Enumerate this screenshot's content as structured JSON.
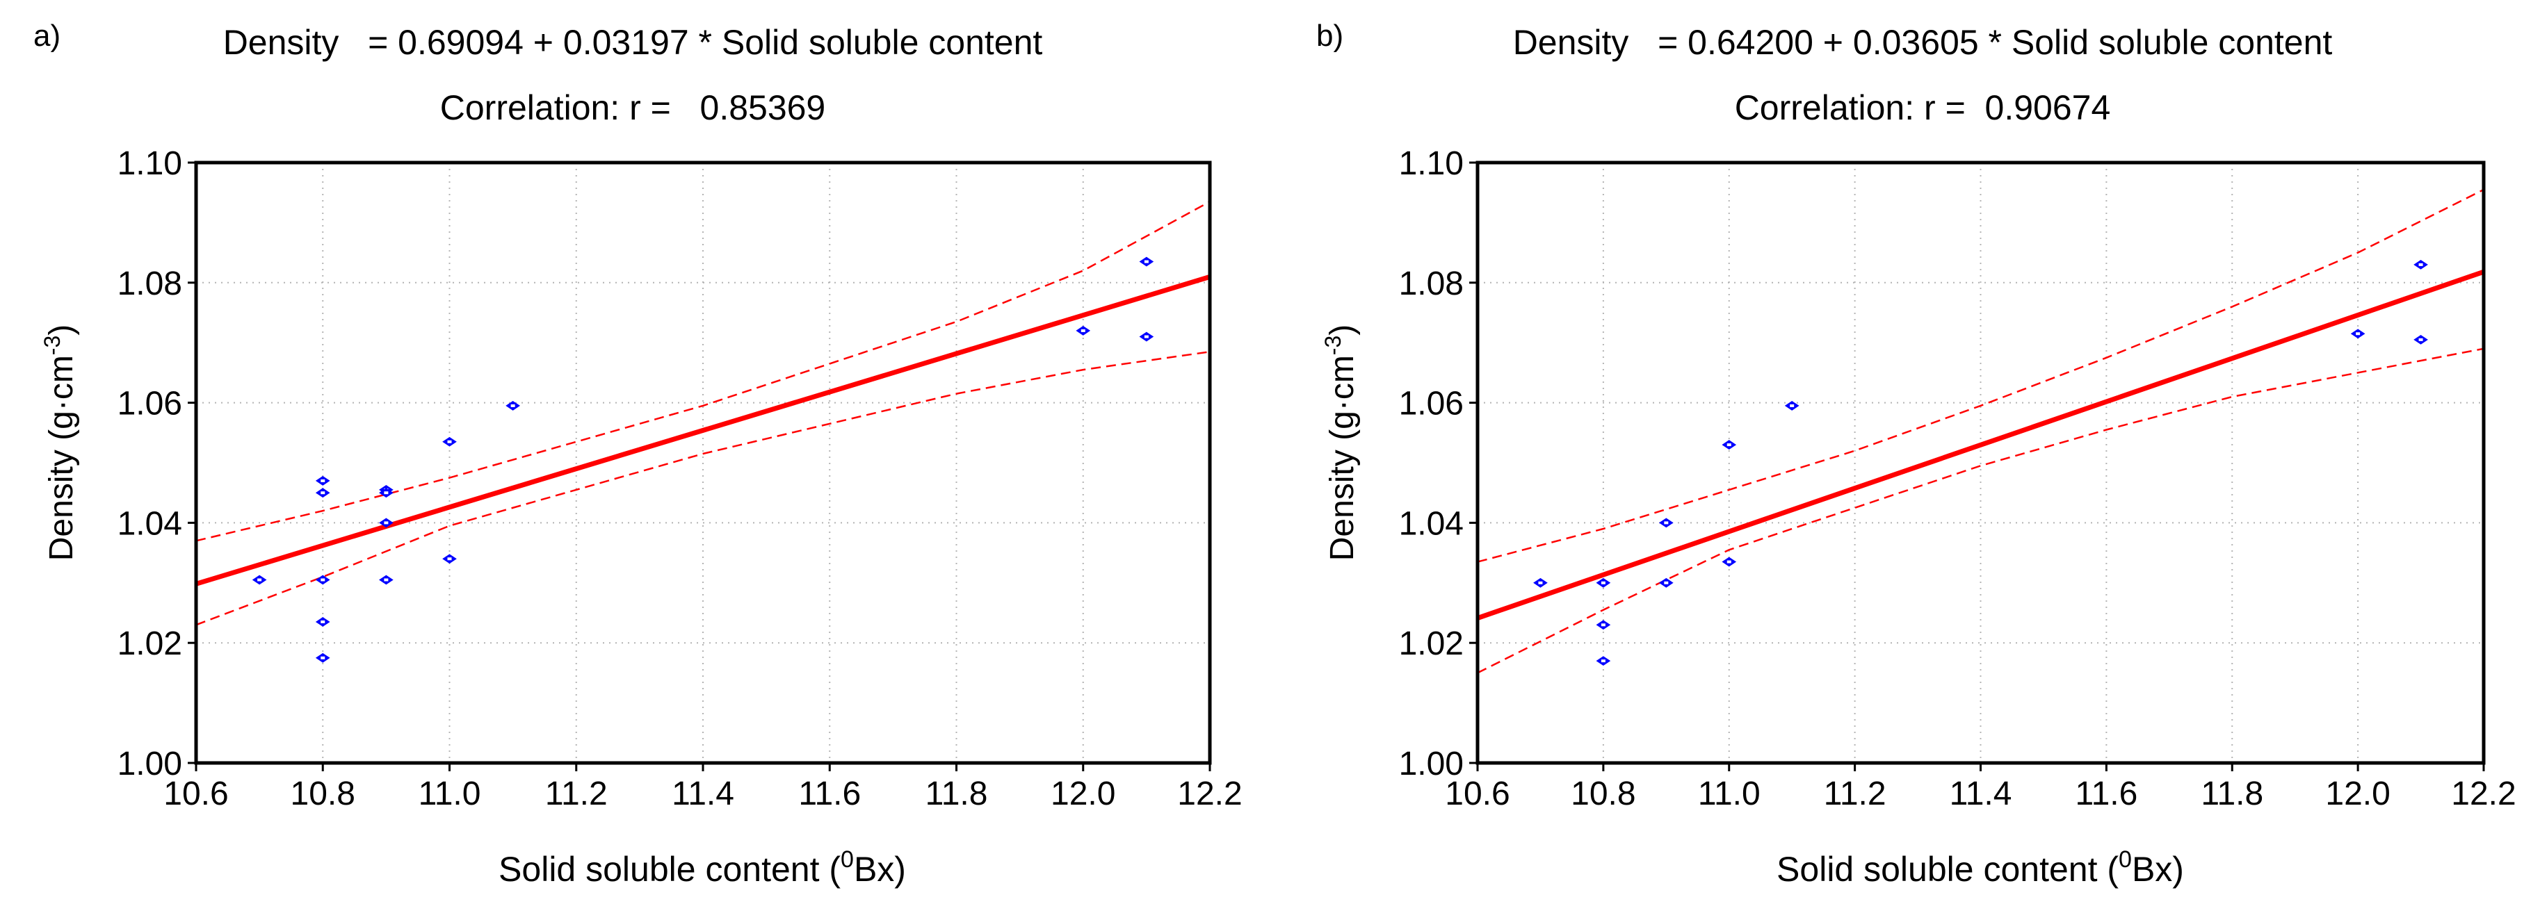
{
  "colors": {
    "regression": "#ff0000",
    "confidence": "#ff0000",
    "points": "#0000ff",
    "grid": "#b4b4b4",
    "axis": "#000000"
  },
  "chart_data": [
    {
      "type": "scatter",
      "panel_label": "a)",
      "equation": "Density   = 0.69094 + 0.03197 * Solid soluble content",
      "correlation": "Correlation: r =   0.85369",
      "ylabel_main": "Density (g·cm",
      "ylabel_sup": "-3",
      "ylabel_end": ")",
      "xlabel_main": "Solid soluble content (",
      "xlabel_sup": "0",
      "xlabel_end": "Bx)",
      "xlim": [
        10.6,
        12.2
      ],
      "ylim": [
        1.0,
        1.1
      ],
      "grid": true,
      "xticks": [
        10.6,
        10.8,
        11.0,
        11.2,
        11.4,
        11.6,
        11.8,
        12.0,
        12.2
      ],
      "xtick_labels": [
        "10.6",
        "10.8",
        "11.0",
        "11.2",
        "11.4",
        "11.6",
        "11.8",
        "12.0",
        "12.2"
      ],
      "yticks": [
        1.0,
        1.02,
        1.04,
        1.06,
        1.08,
        1.1
      ],
      "ytick_labels": [
        "1.00",
        "1.02",
        "1.04",
        "1.06",
        "1.08",
        "1.10"
      ],
      "intercept": 0.69094,
      "slope": 0.03197,
      "ci_upper": [
        [
          10.6,
          1.037
        ],
        [
          10.8,
          1.042
        ],
        [
          11.0,
          1.0475
        ],
        [
          11.2,
          1.0535
        ],
        [
          11.4,
          1.0595
        ],
        [
          11.6,
          1.0665
        ],
        [
          11.8,
          1.0735
        ],
        [
          12.0,
          1.082
        ],
        [
          12.2,
          1.0935
        ]
      ],
      "ci_lower": [
        [
          10.6,
          1.023
        ],
        [
          10.8,
          1.031
        ],
        [
          11.0,
          1.0395
        ],
        [
          11.2,
          1.0455
        ],
        [
          11.4,
          1.0515
        ],
        [
          11.6,
          1.0565
        ],
        [
          11.8,
          1.0615
        ],
        [
          12.0,
          1.0655
        ],
        [
          12.2,
          1.0685
        ]
      ],
      "points": [
        {
          "x": 10.7,
          "y": 1.0305
        },
        {
          "x": 10.8,
          "y": 1.047
        },
        {
          "x": 10.8,
          "y": 1.045
        },
        {
          "x": 10.8,
          "y": 1.0305
        },
        {
          "x": 10.8,
          "y": 1.0235
        },
        {
          "x": 10.8,
          "y": 1.0175
        },
        {
          "x": 10.9,
          "y": 1.0455
        },
        {
          "x": 10.9,
          "y": 1.045
        },
        {
          "x": 10.9,
          "y": 1.04
        },
        {
          "x": 10.9,
          "y": 1.0305
        },
        {
          "x": 11.0,
          "y": 1.0535
        },
        {
          "x": 11.0,
          "y": 1.034
        },
        {
          "x": 11.1,
          "y": 1.0595
        },
        {
          "x": 12.0,
          "y": 1.072
        },
        {
          "x": 12.1,
          "y": 1.0835
        },
        {
          "x": 12.1,
          "y": 1.071
        }
      ]
    },
    {
      "type": "scatter",
      "panel_label": "b)",
      "equation": "Density   = 0.64200 + 0.03605 * Solid soluble content",
      "correlation": "Correlation: r =  0.90674",
      "ylabel_main": "Density (g·cm",
      "ylabel_sup": "-3",
      "ylabel_end": ")",
      "xlabel_main": "Solid soluble content (",
      "xlabel_sup": "0",
      "xlabel_end": "Bx)",
      "xlim": [
        10.6,
        12.2
      ],
      "ylim": [
        1.0,
        1.1
      ],
      "grid": true,
      "xticks": [
        10.6,
        10.8,
        11.0,
        11.2,
        11.4,
        11.6,
        11.8,
        12.0,
        12.2
      ],
      "xtick_labels": [
        "10.6",
        "10.8",
        "11.0",
        "11.2",
        "11.4",
        "11.6",
        "11.8",
        "12.0",
        "12.2"
      ],
      "yticks": [
        1.0,
        1.02,
        1.04,
        1.06,
        1.08,
        1.1
      ],
      "ytick_labels": [
        "1.00",
        "1.02",
        "1.04",
        "1.06",
        "1.08",
        "1.10"
      ],
      "intercept": 0.642,
      "slope": 0.03605,
      "ci_upper": [
        [
          10.6,
          1.0335
        ],
        [
          10.8,
          1.039
        ],
        [
          11.0,
          1.0455
        ],
        [
          11.2,
          1.052
        ],
        [
          11.4,
          1.0595
        ],
        [
          11.6,
          1.0675
        ],
        [
          11.8,
          1.076
        ],
        [
          12.0,
          1.085
        ],
        [
          12.2,
          1.0955
        ]
      ],
      "ci_lower": [
        [
          10.6,
          1.015
        ],
        [
          10.8,
          1.0255
        ],
        [
          11.0,
          1.0355
        ],
        [
          11.2,
          1.0425
        ],
        [
          11.4,
          1.0495
        ],
        [
          11.6,
          1.0555
        ],
        [
          11.8,
          1.061
        ],
        [
          12.0,
          1.065
        ],
        [
          12.2,
          1.069
        ]
      ],
      "points": [
        {
          "x": 10.7,
          "y": 1.03
        },
        {
          "x": 10.8,
          "y": 1.03
        },
        {
          "x": 10.8,
          "y": 1.023
        },
        {
          "x": 10.8,
          "y": 1.017
        },
        {
          "x": 10.9,
          "y": 1.04
        },
        {
          "x": 10.9,
          "y": 1.03
        },
        {
          "x": 11.0,
          "y": 1.053
        },
        {
          "x": 11.0,
          "y": 1.0335
        },
        {
          "x": 11.1,
          "y": 1.0595
        },
        {
          "x": 12.0,
          "y": 1.0715
        },
        {
          "x": 12.1,
          "y": 1.083
        },
        {
          "x": 12.1,
          "y": 1.0705
        }
      ]
    }
  ]
}
